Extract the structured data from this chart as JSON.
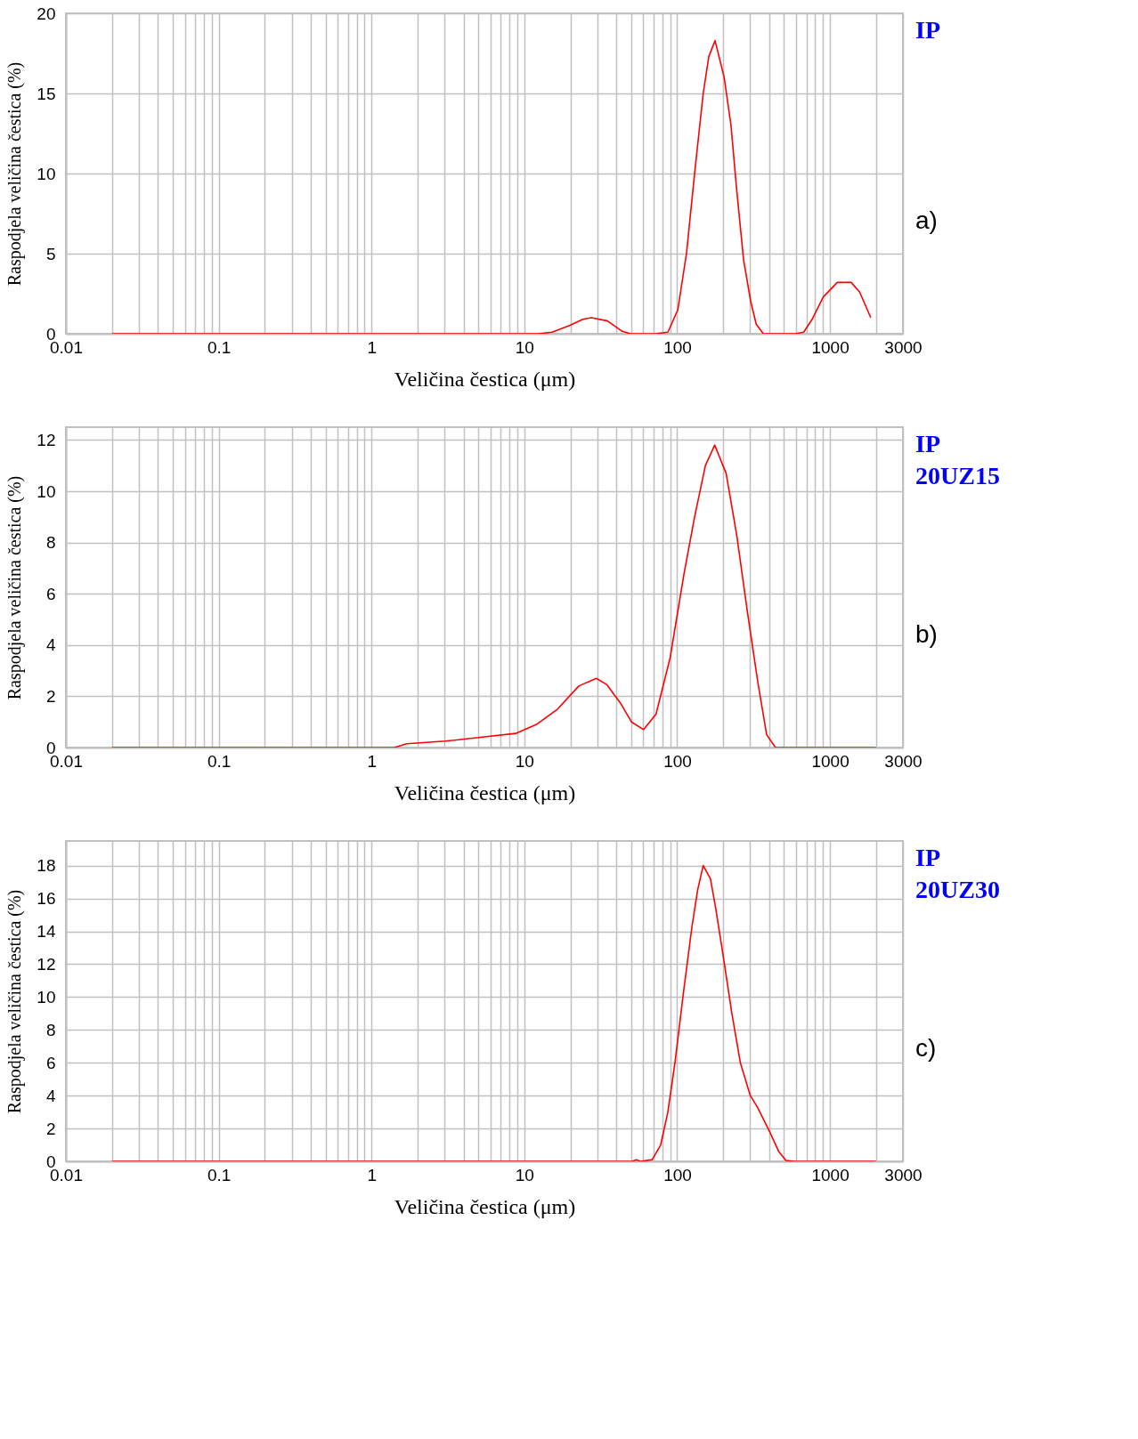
{
  "chart_data": [
    {
      "type": "line",
      "xlabel": "Veličina čestica (μm)",
      "ylabel": "Raspodjela veličina čestica (%)",
      "annotations": [
        "IP",
        "a)"
      ],
      "log": "x",
      "grid": true,
      "xlim": [
        0.01,
        3000
      ],
      "ylim": [
        0,
        20
      ],
      "yticks": [
        0,
        5,
        10,
        15,
        20
      ],
      "xticks": [
        0.01,
        {
          "value": 0.02,
          "label": null
        },
        {
          "value": 0.03,
          "label": null
        },
        {
          "value": 0.04,
          "label": null
        },
        {
          "value": 0.05,
          "label": null
        },
        {
          "value": 0.06,
          "label": null
        },
        {
          "value": 0.07,
          "label": null
        },
        {
          "value": 0.08,
          "label": null
        },
        {
          "value": 0.09,
          "label": null
        },
        0.1,
        {
          "value": 0.2,
          "label": null
        },
        {
          "value": 0.3,
          "label": null
        },
        {
          "value": 0.4,
          "label": null
        },
        {
          "value": 0.5,
          "label": null
        },
        {
          "value": 0.6,
          "label": null
        },
        {
          "value": 0.7,
          "label": null
        },
        {
          "value": 0.8,
          "label": null
        },
        {
          "value": 0.9,
          "label": null
        },
        1,
        {
          "value": 2,
          "label": null
        },
        {
          "value": 3,
          "label": null
        },
        {
          "value": 4,
          "label": null
        },
        {
          "value": 5,
          "label": null
        },
        {
          "value": 6,
          "label": null
        },
        {
          "value": 7,
          "label": null
        },
        {
          "value": 8,
          "label": null
        },
        {
          "value": 9,
          "label": null
        },
        10,
        {
          "value": 20,
          "label": null
        },
        {
          "value": 30,
          "label": null
        },
        {
          "value": 40,
          "label": null
        },
        {
          "value": 50,
          "label": null
        },
        {
          "value": 60,
          "label": null
        },
        {
          "value": 70,
          "label": null
        },
        {
          "value": 80,
          "label": null
        },
        {
          "value": 90,
          "label": null
        },
        100,
        {
          "value": 200,
          "label": null
        },
        {
          "value": 300,
          "label": null
        },
        {
          "value": 400,
          "label": null
        },
        {
          "value": 500,
          "label": null
        },
        {
          "value": 600,
          "label": null
        },
        {
          "value": 700,
          "label": null
        },
        {
          "value": 800,
          "label": null
        },
        {
          "value": 900,
          "label": null
        },
        1000,
        {
          "value": 2000,
          "label": null
        },
        3000
      ],
      "series": [
        {
          "color": "#ff0000",
          "x": [
            0.02,
            12.3,
            15.2,
            19.6,
            24.2,
            27.5,
            35,
            43.7,
            49.5,
            72,
            87,
            101,
            115,
            130,
            148,
            161,
            177,
            203,
            225,
            245,
            272,
            303,
            329,
            366,
            593,
            673,
            764,
            904,
            1116,
            1377,
            1564,
            1849
          ],
          "values": [
            0,
            0,
            0.1,
            0.5,
            0.9,
            1.0,
            0.8,
            0.15,
            0,
            0,
            0.1,
            1.5,
            5,
            10,
            15,
            17.3,
            18.3,
            16,
            13,
            9,
            4.6,
            2,
            0.6,
            0,
            0,
            0.1,
            0.9,
            2.3,
            3.2,
            3.2,
            2.6,
            1.0
          ]
        }
      ]
    },
    {
      "type": "line",
      "xlabel": "Veličina čestica (μm)",
      "ylabel": "Raspodjela veličina čestica (%)",
      "annotations": [
        "IP\n20UZ15",
        "b)"
      ],
      "log": "x",
      "grid": true,
      "xlim": [
        0.01,
        3000
      ],
      "ylim": [
        0,
        12.5
      ],
      "yticks": [
        0,
        2,
        4,
        6,
        8,
        10,
        12
      ],
      "xticks": [
        0.01,
        {
          "value": 0.02,
          "label": null
        },
        {
          "value": 0.03,
          "label": null
        },
        {
          "value": 0.04,
          "label": null
        },
        {
          "value": 0.05,
          "label": null
        },
        {
          "value": 0.06,
          "label": null
        },
        {
          "value": 0.07,
          "label": null
        },
        {
          "value": 0.08,
          "label": null
        },
        {
          "value": 0.09,
          "label": null
        },
        0.1,
        {
          "value": 0.2,
          "label": null
        },
        {
          "value": 0.3,
          "label": null
        },
        {
          "value": 0.4,
          "label": null
        },
        {
          "value": 0.5,
          "label": null
        },
        {
          "value": 0.6,
          "label": null
        },
        {
          "value": 0.7,
          "label": null
        },
        {
          "value": 0.8,
          "label": null
        },
        {
          "value": 0.9,
          "label": null
        },
        1,
        {
          "value": 2,
          "label": null
        },
        {
          "value": 3,
          "label": null
        },
        {
          "value": 4,
          "label": null
        },
        {
          "value": 5,
          "label": null
        },
        {
          "value": 6,
          "label": null
        },
        {
          "value": 7,
          "label": null
        },
        {
          "value": 8,
          "label": null
        },
        {
          "value": 9,
          "label": null
        },
        10,
        {
          "value": 20,
          "label": null
        },
        {
          "value": 30,
          "label": null
        },
        {
          "value": 40,
          "label": null
        },
        {
          "value": 50,
          "label": null
        },
        {
          "value": 60,
          "label": null
        },
        {
          "value": 70,
          "label": null
        },
        {
          "value": 80,
          "label": null
        },
        {
          "value": 90,
          "label": null
        },
        100,
        {
          "value": 200,
          "label": null
        },
        {
          "value": 300,
          "label": null
        },
        {
          "value": 400,
          "label": null
        },
        {
          "value": 500,
          "label": null
        },
        {
          "value": 600,
          "label": null
        },
        {
          "value": 700,
          "label": null
        },
        {
          "value": 800,
          "label": null
        },
        {
          "value": 900,
          "label": null
        },
        1000,
        {
          "value": 2000,
          "label": null
        },
        3000
      ],
      "series": [
        {
          "color": "#ff0000",
          "x": [
            0.02,
            1.41,
            1.7,
            3.04,
            5.16,
            8.77,
            12.0,
            16.5,
            22.7,
            29.6,
            34.7,
            42.9,
            50.2,
            60.3,
            72.7,
            89.9,
            111,
            130,
            153,
            176,
            209,
            245,
            288,
            338,
            385,
            440,
            2000
          ],
          "values": [
            0,
            0,
            0.15,
            0.25,
            0.4,
            0.55,
            0.9,
            1.5,
            2.4,
            2.7,
            2.45,
            1.7,
            1.0,
            0.7,
            1.3,
            3.5,
            6.8,
            9.0,
            11.0,
            11.8,
            10.7,
            8.3,
            5.3,
            2.5,
            0.5,
            0,
            0
          ]
        }
      ]
    },
    {
      "type": "line",
      "xlabel": "Veličina čestica (μm)",
      "ylabel": "Raspodjela veličina čestica (%)",
      "annotations": [
        "IP\n20UZ30",
        "c)"
      ],
      "log": "x",
      "grid": true,
      "xlim": [
        0.01,
        3000
      ],
      "ylim": [
        0,
        19.5
      ],
      "yticks": [
        0,
        2,
        4,
        6,
        8,
        10,
        12,
        14,
        16,
        18
      ],
      "xticks": [
        0.01,
        {
          "value": 0.02,
          "label": null
        },
        {
          "value": 0.03,
          "label": null
        },
        {
          "value": 0.04,
          "label": null
        },
        {
          "value": 0.05,
          "label": null
        },
        {
          "value": 0.06,
          "label": null
        },
        {
          "value": 0.07,
          "label": null
        },
        {
          "value": 0.08,
          "label": null
        },
        {
          "value": 0.09,
          "label": null
        },
        0.1,
        {
          "value": 0.2,
          "label": null
        },
        {
          "value": 0.3,
          "label": null
        },
        {
          "value": 0.4,
          "label": null
        },
        {
          "value": 0.5,
          "label": null
        },
        {
          "value": 0.6,
          "label": null
        },
        {
          "value": 0.7,
          "label": null
        },
        {
          "value": 0.8,
          "label": null
        },
        {
          "value": 0.9,
          "label": null
        },
        1,
        {
          "value": 2,
          "label": null
        },
        {
          "value": 3,
          "label": null
        },
        {
          "value": 4,
          "label": null
        },
        {
          "value": 5,
          "label": null
        },
        {
          "value": 6,
          "label": null
        },
        {
          "value": 7,
          "label": null
        },
        {
          "value": 8,
          "label": null
        },
        {
          "value": 9,
          "label": null
        },
        10,
        {
          "value": 20,
          "label": null
        },
        {
          "value": 30,
          "label": null
        },
        {
          "value": 40,
          "label": null
        },
        {
          "value": 50,
          "label": null
        },
        {
          "value": 60,
          "label": null
        },
        {
          "value": 70,
          "label": null
        },
        {
          "value": 80,
          "label": null
        },
        {
          "value": 90,
          "label": null
        },
        100,
        {
          "value": 200,
          "label": null
        },
        {
          "value": 300,
          "label": null
        },
        {
          "value": 400,
          "label": null
        },
        {
          "value": 500,
          "label": null
        },
        {
          "value": 600,
          "label": null
        },
        {
          "value": 700,
          "label": null
        },
        {
          "value": 800,
          "label": null
        },
        {
          "value": 900,
          "label": null
        },
        1000,
        {
          "value": 2000,
          "label": null
        },
        3000
      ],
      "series": [
        {
          "color": "#ff0000",
          "x": [
            0.02,
            50.8,
            54,
            57.6,
            68.6,
            78,
            86.9,
            96.7,
            110,
            125,
            136,
            148,
            165,
            178,
            200,
            228,
            259,
            301,
            335,
            398,
            462,
            515,
            585,
            2000
          ],
          "values": [
            0,
            0,
            0.1,
            0,
            0.1,
            1.0,
            3.0,
            6.0,
            10.3,
            14.3,
            16.5,
            18.0,
            17.2,
            15.5,
            12.5,
            9.0,
            6.0,
            4.0,
            3.3,
            1.9,
            0.6,
            0.05,
            0,
            0
          ]
        }
      ]
    }
  ]
}
